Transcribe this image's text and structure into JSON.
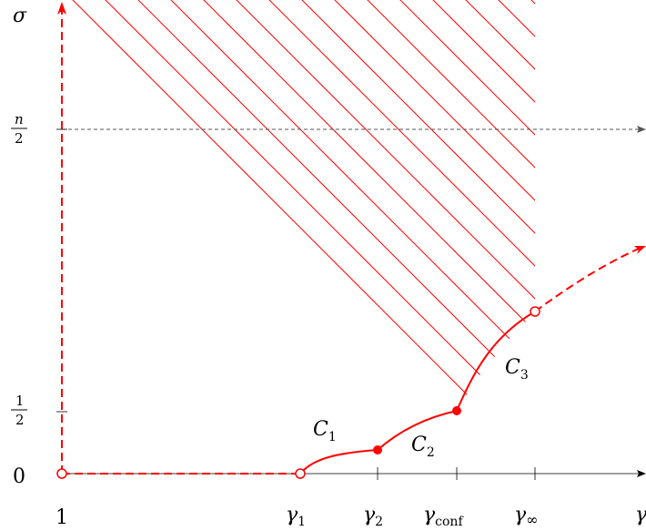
{
  "colors": {
    "accent": "#ff0000",
    "axis": "#000000",
    "dotted": "#555555"
  },
  "y_axis": {
    "symbol": "σ",
    "ticks": {
      "zero": "0",
      "half_num": "1",
      "half_den": "2",
      "n_over_2_num": "n",
      "n_over_2_den": "2"
    }
  },
  "x_axis": {
    "end_symbol": "γ",
    "start_label": "1",
    "ticks": [
      {
        "base": "γ",
        "sub": "1"
      },
      {
        "base": "γ",
        "sub": "2"
      },
      {
        "base": "γ",
        "sub": "conf"
      },
      {
        "base": "γ",
        "sub": "∞"
      }
    ]
  },
  "curves": [
    {
      "base": "C",
      "sub": "1"
    },
    {
      "base": "C",
      "sub": "2"
    },
    {
      "base": "C",
      "sub": "3"
    }
  ]
}
